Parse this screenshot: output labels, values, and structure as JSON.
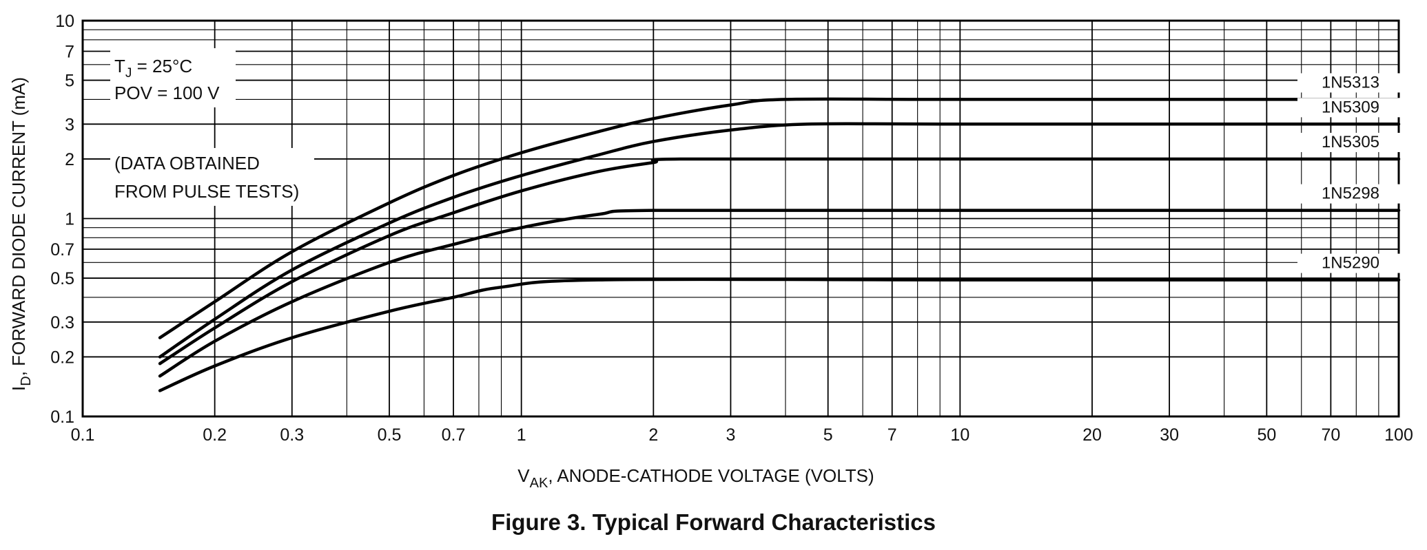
{
  "chart_data": {
    "type": "line",
    "caption": "Figure 3. Typical Forward Characteristics",
    "xlabel": {
      "main": "V",
      "sub": "AK",
      "rest": ", ANODE-CATHODE VOLTAGE (VOLTS)"
    },
    "ylabel": {
      "main": "I",
      "sub": "D",
      "rest": ", FORWARD DIODE CURRENT (mA)"
    },
    "xscale": "log",
    "yscale": "log",
    "xlim": [
      0.1,
      100
    ],
    "ylim": [
      0.1,
      10
    ],
    "grid": true,
    "xticks": [
      "0.1",
      "0.2",
      "0.3",
      "0.5",
      "0.7",
      "1",
      "2",
      "3",
      "5",
      "7",
      "10",
      "20",
      "30",
      "50",
      "70",
      "100"
    ],
    "xtick_values": [
      0.1,
      0.2,
      0.3,
      0.5,
      0.7,
      1,
      2,
      3,
      5,
      7,
      10,
      20,
      30,
      50,
      70,
      100
    ],
    "yticks": [
      "0.1",
      "0.2",
      "0.3",
      "0.5",
      "0.7",
      "1",
      "2",
      "3",
      "5",
      "7",
      "10"
    ],
    "ytick_values": [
      0.1,
      0.2,
      0.3,
      0.5,
      0.7,
      1,
      2,
      3,
      5,
      7,
      10
    ],
    "annotations": {
      "temp_main": "T",
      "temp_sub": "J",
      "temp_rest": " = 25°C",
      "pov": "POV = 100 V",
      "data_note_line1": "(DATA OBTAINED",
      "data_note_line2": "FROM PULSE TESTS)"
    },
    "series": [
      {
        "name": "1N5313",
        "x": [
          0.15,
          0.2,
          0.3,
          0.5,
          0.7,
          1,
          1.5,
          2,
          3,
          4,
          10,
          100
        ],
        "y": [
          0.25,
          0.38,
          0.68,
          1.2,
          1.65,
          2.15,
          2.75,
          3.2,
          3.75,
          4.0,
          4.0,
          4.0
        ]
      },
      {
        "name": "1N5309",
        "x": [
          0.15,
          0.2,
          0.3,
          0.5,
          0.7,
          1,
          1.5,
          2,
          3,
          4.5,
          10,
          100
        ],
        "y": [
          0.2,
          0.31,
          0.55,
          0.95,
          1.28,
          1.65,
          2.1,
          2.45,
          2.8,
          3.0,
          3.0,
          3.0
        ]
      },
      {
        "name": "1N5305",
        "x": [
          0.15,
          0.2,
          0.3,
          0.5,
          0.7,
          1,
          1.5,
          2,
          2.3,
          10,
          100
        ],
        "y": [
          0.185,
          0.28,
          0.48,
          0.82,
          1.07,
          1.38,
          1.73,
          1.92,
          2.0,
          2.0,
          2.0
        ]
      },
      {
        "name": "1N5298",
        "x": [
          0.15,
          0.2,
          0.3,
          0.5,
          0.7,
          1,
          1.5,
          2,
          10,
          100
        ],
        "y": [
          0.16,
          0.24,
          0.38,
          0.6,
          0.74,
          0.9,
          1.05,
          1.1,
          1.1,
          1.1
        ]
      },
      {
        "name": "1N5290",
        "x": [
          0.15,
          0.2,
          0.3,
          0.5,
          0.7,
          0.9,
          1.5,
          10,
          100
        ],
        "y": [
          0.135,
          0.18,
          0.25,
          0.34,
          0.4,
          0.45,
          0.49,
          0.49,
          0.49
        ]
      }
    ]
  }
}
